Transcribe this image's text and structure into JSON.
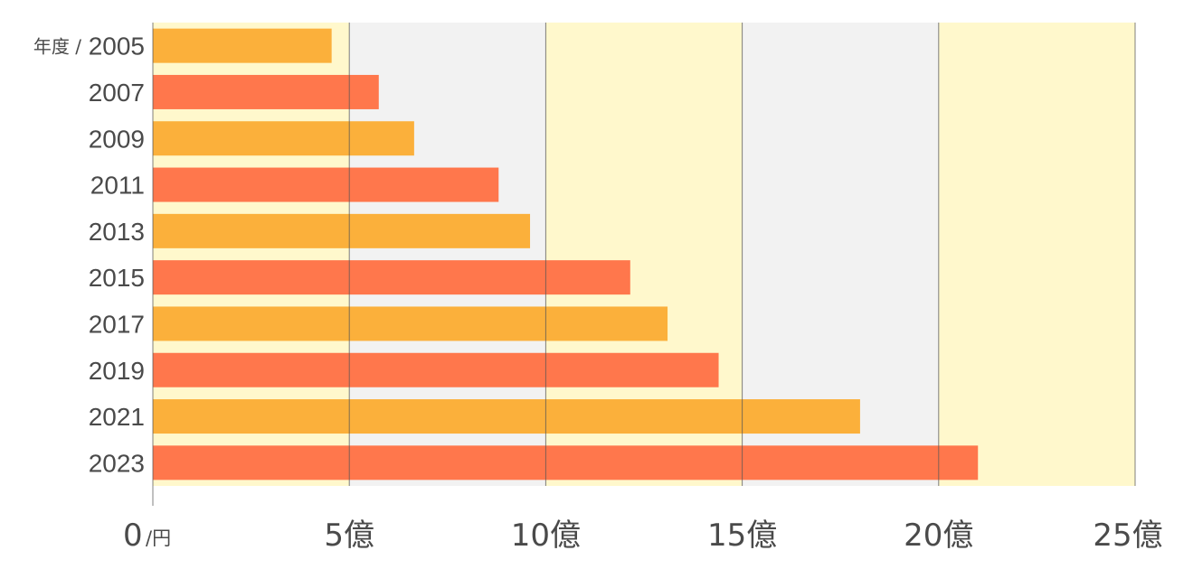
{
  "chart_data": {
    "type": "bar",
    "orientation": "horizontal",
    "categories": [
      "2005",
      "2007",
      "2009",
      "2011",
      "2013",
      "2015",
      "2017",
      "2019",
      "2021",
      "2023"
    ],
    "values": [
      4.55,
      5.75,
      6.65,
      8.8,
      9.6,
      12.15,
      13.1,
      14.4,
      18.0,
      21.0
    ],
    "y_unit_label": "年度 /",
    "x_ticks": [
      {
        "value": 0,
        "label": "0",
        "unit": "/円"
      },
      {
        "value": 5,
        "label": "5億"
      },
      {
        "value": 10,
        "label": "10億"
      },
      {
        "value": 15,
        "label": "15億"
      },
      {
        "value": 20,
        "label": "20億"
      },
      {
        "value": 25,
        "label": "25億"
      }
    ],
    "xlim": [
      0,
      25
    ],
    "grid": true,
    "colors": {
      "bar_odd": "#FBB03B",
      "bar_even": "#FF774C",
      "band_yellow": "#FFF8CC",
      "band_gray": "#F2F2F2",
      "grid": "#555555"
    },
    "band_pattern": [
      "band_yellow",
      "band_gray",
      "band_yellow",
      "band_gray",
      "band_yellow"
    ]
  }
}
